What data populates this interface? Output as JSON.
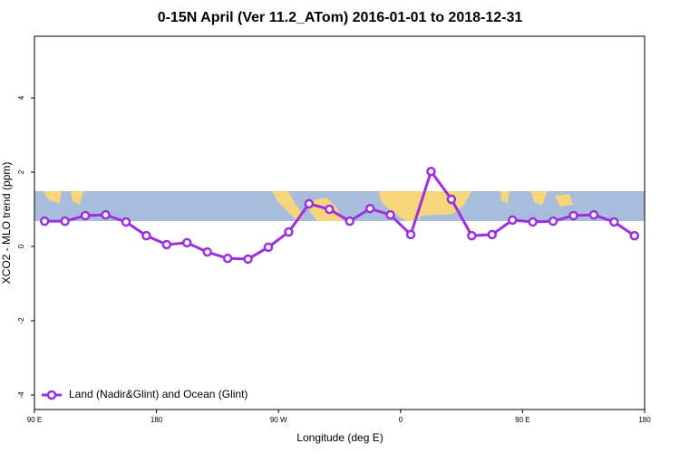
{
  "chart_data": {
    "type": "line",
    "title": "0-15N April (Ver 11.2_ATom)   2016-01-01 to 2018-12-31",
    "x_label": "Longitude (deg E)",
    "y_label": "XCO2 - MLO trend (ppm)",
    "x": [
      97.5,
      112.5,
      127.5,
      142.5,
      157.5,
      172.5,
      187.5,
      202.5,
      217.5,
      232.5,
      247.5,
      262.5,
      277.5,
      292.5,
      307.5,
      322.5,
      337.5,
      352.5,
      367.5,
      382.5,
      397.5,
      412.5,
      427.5,
      442.5,
      457.5,
      472.5,
      487.5,
      502.5,
      517.5,
      532.5
    ],
    "series": [
      {
        "name": "Land (Nadir&Glint) and Ocean (Glint)",
        "color": "#9b30e0",
        "values": [
          0.68,
          0.68,
          0.83,
          0.85,
          0.66,
          0.29,
          0.05,
          0.1,
          -0.15,
          -0.32,
          -0.34,
          -0.02,
          0.39,
          1.15,
          1.0,
          0.68,
          1.02,
          0.85,
          0.32,
          2.02,
          1.27,
          0.29,
          0.32,
          0.71,
          0.66,
          0.68,
          0.83,
          0.85,
          0.66,
          0.29
        ]
      }
    ],
    "xlim": [
      90,
      540
    ],
    "xticks": [
      {
        "value": 90,
        "label": "90 E"
      },
      180,
      {
        "value": 270,
        "label": "90 W"
      },
      {
        "value": 360,
        "label": "0"
      },
      {
        "value": 450,
        "label": "90 E"
      },
      {
        "value": 540,
        "label": "180"
      }
    ],
    "ylim": [
      -4.39,
      5.66
    ],
    "yticks": [
      -4,
      -2,
      0,
      2,
      4
    ],
    "legend": "bottom-left"
  }
}
